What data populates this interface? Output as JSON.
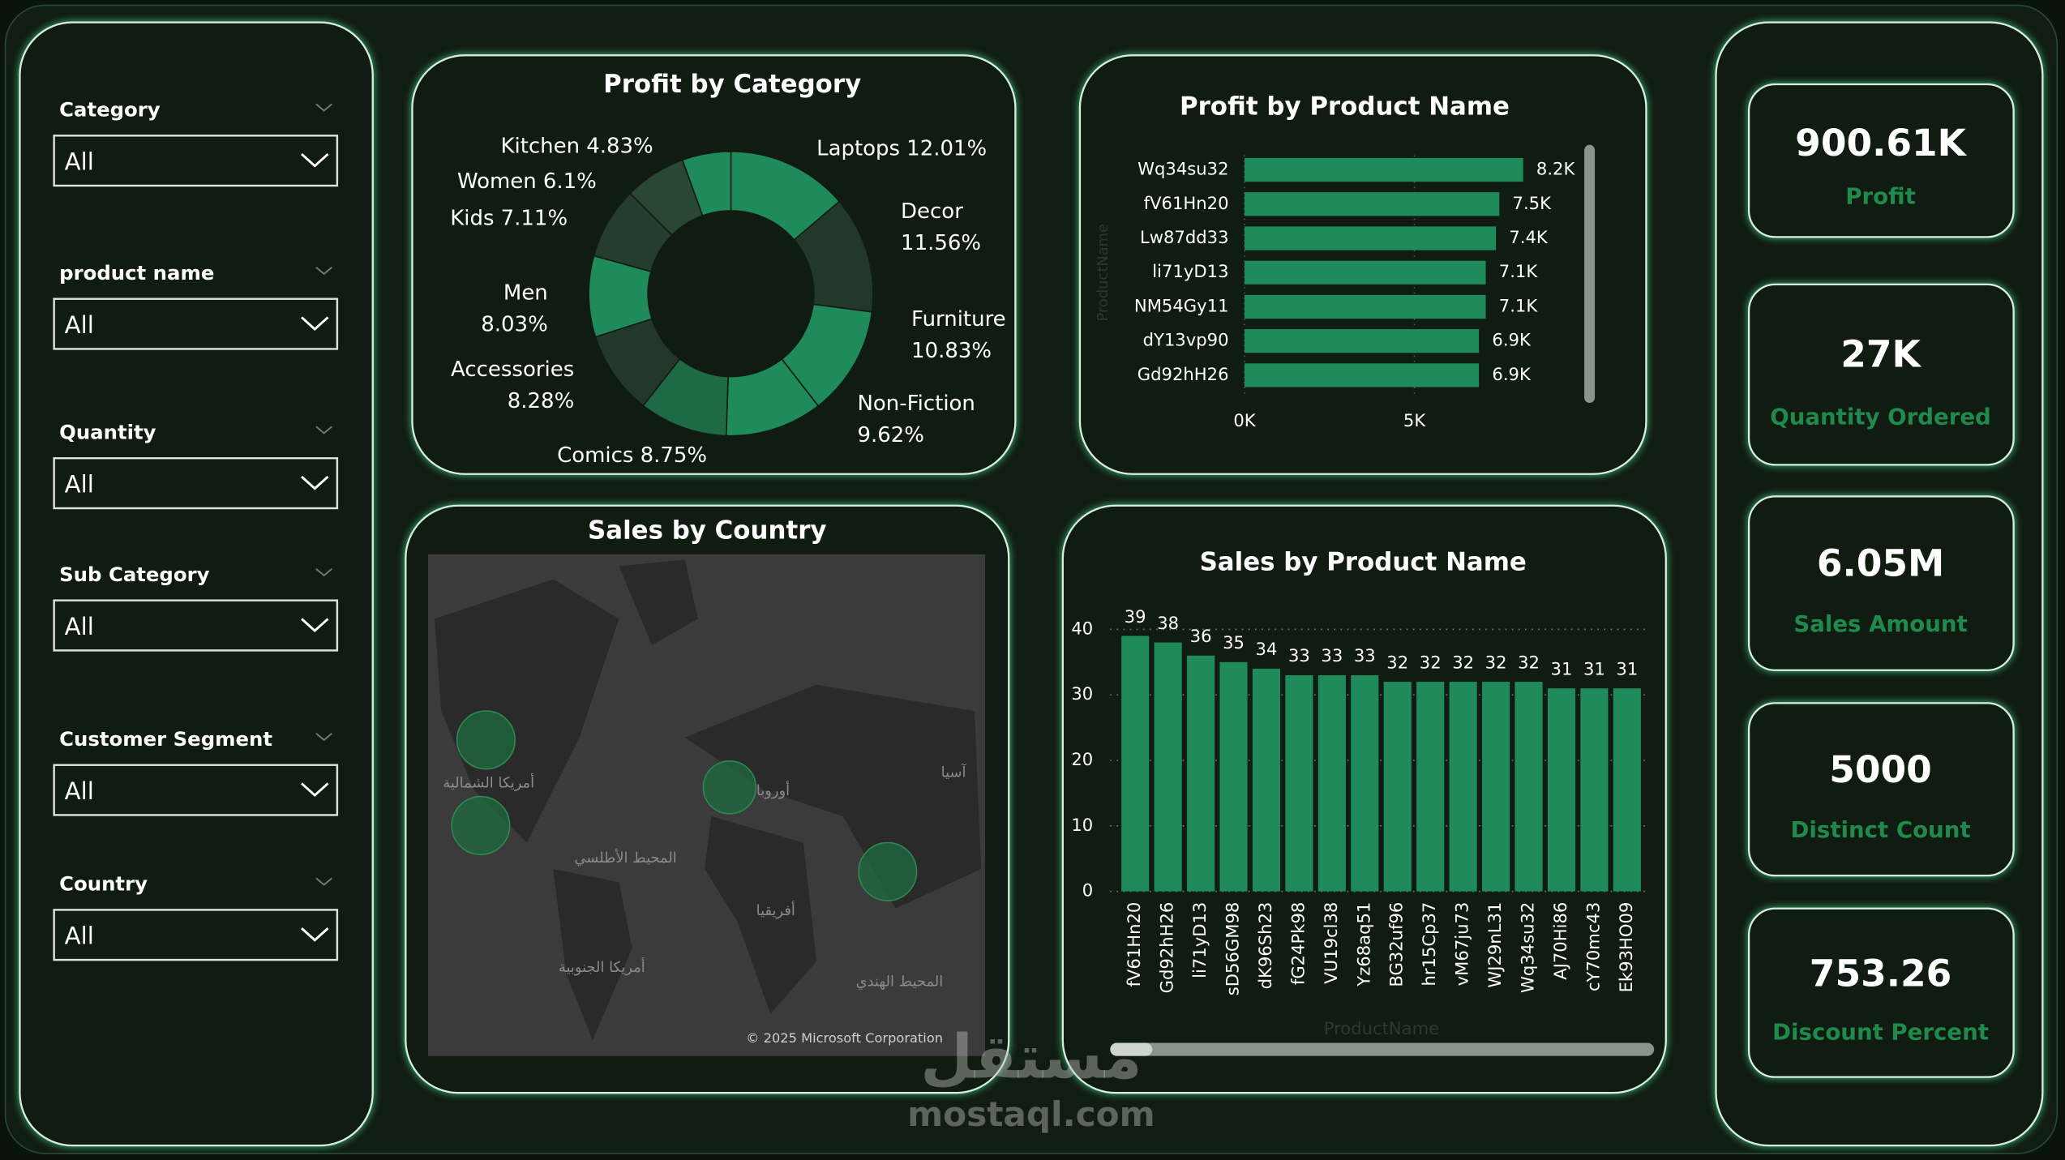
{
  "filters": [
    {
      "label": "Category",
      "value": "All"
    },
    {
      "label": "product name",
      "value": "All"
    },
    {
      "label": "Quantity",
      "value": "All"
    },
    {
      "label": "Sub Category",
      "value": "All"
    },
    {
      "label": "Customer Segment",
      "value": "All"
    },
    {
      "label": "Country",
      "value": "All"
    }
  ],
  "kpis": [
    {
      "value": "900.61K",
      "label": "Profit"
    },
    {
      "value": "27K",
      "label": "Quantity Ordered"
    },
    {
      "value": "6.05M",
      "label": "Sales Amount"
    },
    {
      "value": "5000",
      "label": "Distinct Count"
    },
    {
      "value": "753.26",
      "label": "Discount Percent"
    }
  ],
  "map": {
    "title": "Sales by Country",
    "labels": [
      "أمريكا الشمالية",
      "أوروبا",
      "آسيا",
      "المحيط الأطلسي",
      "أفريقيا",
      "أمريكا الجنوبية",
      "المحيط الهندي"
    ],
    "copyright": "© 2025 Microsoft Corporation"
  },
  "watermark": {
    "arabic": "مستقل",
    "site": "mostaql.com"
  },
  "chart_data": [
    {
      "type": "donut",
      "title": "Profit by Category",
      "categories": [
        "Laptops",
        "Decor",
        "Furniture",
        "Non-Fiction",
        "Comics",
        "Accessories",
        "Men",
        "Kids",
        "Women",
        "Kitchen"
      ],
      "values": [
        12.01,
        11.56,
        10.83,
        9.62,
        8.75,
        8.28,
        8.03,
        7.11,
        6.1,
        4.83
      ],
      "value_labels": [
        "12.01%",
        "11.56%",
        "10.83%",
        "9.62%",
        "8.75%",
        "8.28%",
        "8.03%",
        "7.11%",
        "6.1%",
        "4.83%"
      ],
      "colors": [
        "#1f8a5a",
        "#22382a",
        "#1f8a5a",
        "#1f8a5a",
        "#1d6a45",
        "#22382a",
        "#1f8a5a",
        "#253d2d",
        "#2a4733",
        "#1f8a5a"
      ]
    },
    {
      "type": "hbar",
      "title": "Profit by Product Name",
      "y_label": "ProductName",
      "categories": [
        "Wq34su32",
        "fV61Hn20",
        "Lw87dd33",
        "li71yD13",
        "NM54Gy11",
        "dY13vp90",
        "Gd92hH26"
      ],
      "values": [
        8200,
        7500,
        7400,
        7100,
        7100,
        6900,
        6900
      ],
      "value_labels": [
        "8.2K",
        "7.5K",
        "7.4K",
        "7.1K",
        "7.1K",
        "6.9K",
        "6.9K"
      ],
      "color": "#1f8a5a",
      "xlim": [
        0,
        10000
      ],
      "xticks": [
        {
          "value": 0,
          "label": "0K"
        },
        {
          "value": 5000,
          "label": "5K"
        }
      ]
    },
    {
      "type": "bar",
      "title": "Sales by Product Name",
      "x_label": "ProductName",
      "categories": [
        "fV61Hn20",
        "Gd92hH26",
        "li71yD13",
        "sD56GM98",
        "dK96Sh23",
        "fG24Pk98",
        "VU19cl38",
        "Yz68aq51",
        "BG32uf96",
        "hr15Cp37",
        "vM67ju73",
        "WJ29nL31",
        "Wq34su32",
        "AJ70Hi86",
        "cY70mc43",
        "Ek93HO09"
      ],
      "values": [
        39,
        38,
        36,
        35,
        34,
        33,
        33,
        33,
        32,
        32,
        32,
        32,
        32,
        31,
        31,
        31
      ],
      "color": "#1f8a5a",
      "ylim": [
        0,
        40
      ],
      "yticks": [
        0,
        10,
        20,
        30,
        40
      ],
      "grid": true
    }
  ]
}
